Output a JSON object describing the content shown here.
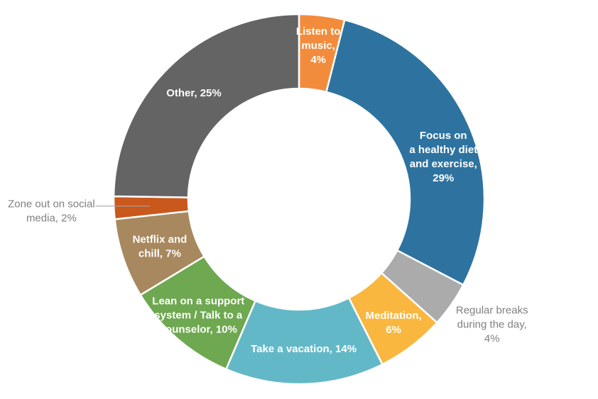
{
  "chart_data": {
    "type": "pie",
    "subtype": "donut",
    "title": "",
    "legend": "none",
    "units": "%",
    "background": "#FFFFFF",
    "outside_label_color": "#808080",
    "leader_line_color": "#A6A6A6",
    "segments": [
      {
        "slug": "listen-to-music",
        "label": "Listen to music",
        "value": 4,
        "data_label": "Listen to music, 4%",
        "color": "#F28C3C",
        "label_lines": [
          "Listen to",
          "music,",
          "4%"
        ],
        "label_color": "#FFFFFF",
        "label_placement": "inside",
        "label_radius_px": 219,
        "label_bold": true
      },
      {
        "slug": "focus-healthy-diet-exercise",
        "label": "Focus on a healthy diet and exercise",
        "value": 29,
        "data_label": "Focus on a healthy diet and exercise, 29%",
        "color": "#2E73A0",
        "label_lines": [
          "Focus on",
          "a healthy diet",
          "and exercise,",
          "29%"
        ],
        "label_color": "#FFFFFF",
        "label_placement": "inside",
        "label_radius_px": 212,
        "label_angle_deg": 73.5,
        "label_bold": true
      },
      {
        "slug": "regular-breaks",
        "label": "Regular breaks during the day",
        "value": 4,
        "data_label": "Regular breaks during the day, 4%",
        "color": "#ABABAB",
        "label_lines": [
          "Regular breaks",
          "during the day,",
          "4%"
        ],
        "label_color": "#808080",
        "label_placement": "outside",
        "label_radius_px": 324,
        "label_angle_deg": 123,
        "label_bold": false
      },
      {
        "slug": "meditation",
        "label": "Meditation",
        "value": 6,
        "data_label": "Meditation, 6%",
        "color": "#F9B73F",
        "label_lines": [
          "Meditation,",
          "6%"
        ],
        "label_color": "#FFFFFF",
        "label_placement": "inside",
        "label_radius_px": 219,
        "label_bold": true
      },
      {
        "slug": "take-a-vacation",
        "label": "Take a vacation",
        "value": 14,
        "data_label": "Take a vacation, 14%",
        "color": "#63B8C8",
        "label_lines": [
          "Take a vacation, 14%"
        ],
        "label_color": "#FFFFFF",
        "label_placement": "inside",
        "label_radius_px": 211,
        "label_bold": true
      },
      {
        "slug": "support-system-counselor",
        "label": "Lean on a support system / Talk to a counselor",
        "value": 10,
        "data_label": "Lean on a support system / Talk to a counselor, 10%",
        "color": "#6EA850",
        "label_lines": [
          "Lean on a support",
          "system / Talk to a",
          "counselor, 10%"
        ],
        "label_color": "#FFFFFF",
        "label_placement": "inside",
        "label_radius_px": 216,
        "label_bold": true
      },
      {
        "slug": "netflix-and-chill",
        "label": "Netflix and chill",
        "value": 7,
        "data_label": "Netflix and chill, 7%",
        "color": "#A8885E",
        "label_lines": [
          "Netflix and",
          "chill, 7%"
        ],
        "label_color": "#FFFFFF",
        "label_placement": "inside",
        "label_radius_px": 207,
        "label_bold": true
      },
      {
        "slug": "zone-out-social-media",
        "label": "Zone out on social media",
        "value": 2,
        "data_label": "Zone out on social media, 2%",
        "color": "#C9581C",
        "label_lines": [
          "Zone out on social",
          "media, 2%"
        ],
        "label_color": "#808080",
        "label_placement": "outside",
        "label_radius_px": 349,
        "leader_line": true,
        "label_bold": false
      },
      {
        "slug": "other",
        "label": "Other",
        "value": 25,
        "data_label": "Other, 25%",
        "color": "#646464",
        "label_lines": [
          "Other, 25%"
        ],
        "label_color": "#FFFFFF",
        "label_placement": "inside",
        "label_radius_px": 211,
        "label_bold": true
      }
    ]
  }
}
